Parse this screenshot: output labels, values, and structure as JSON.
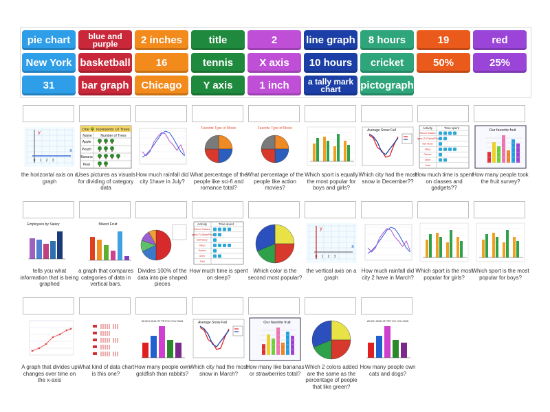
{
  "tiles": [
    {
      "label": "pie chart",
      "color": "#2e9ee8"
    },
    {
      "label": "blue and purple",
      "color": "#c8283a"
    },
    {
      "label": "2 inches",
      "color": "#f28a1c"
    },
    {
      "label": "title",
      "color": "#1f8a3d"
    },
    {
      "label": "2",
      "color": "#c04fd8"
    },
    {
      "label": "line graph",
      "color": "#1b3fa6"
    },
    {
      "label": "8 hours",
      "color": "#2ea57a"
    },
    {
      "label": "19",
      "color": "#ea5a1a"
    },
    {
      "label": "red",
      "color": "#9a45d8"
    },
    {
      "label": "New York",
      "color": "#2e9ee8"
    },
    {
      "label": "basketball",
      "color": "#c8283a"
    },
    {
      "label": "16",
      "color": "#f28a1c"
    },
    {
      "label": "tennis",
      "color": "#1f8a3d"
    },
    {
      "label": "X axis",
      "color": "#c04fd8"
    },
    {
      "label": "10 hours",
      "color": "#1b3fa6"
    },
    {
      "label": "cricket",
      "color": "#2ea57a"
    },
    {
      "label": "50%",
      "color": "#ea5a1a"
    },
    {
      "label": "25%",
      "color": "#9a45d8"
    },
    {
      "label": "31",
      "color": "#2e9ee8"
    },
    {
      "label": "bar graph",
      "color": "#c8283a"
    },
    {
      "label": "Chicago",
      "color": "#f28a1c"
    },
    {
      "label": "Y axis",
      "color": "#1f8a3d"
    },
    {
      "label": "1 inch",
      "color": "#c04fd8"
    },
    {
      "label": "a tally mark chart",
      "color": "#1b3fa6"
    },
    {
      "label": "pictograph",
      "color": "#2ea57a"
    }
  ],
  "cards": [
    {
      "caption": "the horizontal axis on a graph",
      "icon": "axis-x-diagram"
    },
    {
      "caption": "Uses pictures as visuals for dividing of category data",
      "icon": "pictograph-trees-table"
    },
    {
      "caption": "How much rainfall did city 1have in July?",
      "icon": "line-graph-rainfall"
    },
    {
      "caption": "What percentage of the people like sci-fi and romance total?",
      "icon": "pie-chart-movies"
    },
    {
      "caption": "What percentage of the people like action movies?",
      "icon": "pie-chart-movies"
    },
    {
      "caption": "Which sport is equally the most popular for boys and girls?",
      "icon": "bar-graph-sports"
    },
    {
      "caption": "Which city had the most snow in December??",
      "icon": "line-graph-snow"
    },
    {
      "caption": "How much time is spent on classes and gadgets??",
      "icon": "pictograph-time-table"
    },
    {
      "caption": "How many people took the fruit survey?",
      "icon": "bar-graph-fruit"
    },
    {
      "caption": "tells you what information that is being graphed",
      "icon": "bar-graph-employees"
    },
    {
      "caption": "a graph that compares categories of data in vertical bars.",
      "icon": "bar-graph-mixed-fruit"
    },
    {
      "caption": "Divides 100% of the data into pie shaped pieces",
      "icon": "pie-chart"
    },
    {
      "caption": "How much time is spent on sleep?",
      "icon": "pictograph-time-table"
    },
    {
      "caption": "Which color is the second most popular?",
      "icon": "pie-chart-colors"
    },
    {
      "caption": "the vertical axis on a graph",
      "icon": "axis-y-diagram"
    },
    {
      "caption": "How much rainfall did city 2 have in March?",
      "icon": "line-graph-rainfall"
    },
    {
      "caption": "Which sport is the most popular for girls?",
      "icon": "bar-graph-sports"
    },
    {
      "caption": "Which sport is the most popular for boys?",
      "icon": "bar-graph-sports"
    },
    {
      "caption": "A graph that divides up changes over time on the x-axis",
      "icon": "line-graph"
    },
    {
      "caption": "What kind of data chart is this one?",
      "icon": "tally-marks"
    },
    {
      "caption": "How many people own goldfish than rabbits?",
      "icon": "bar-graph-pets"
    },
    {
      "caption": "Which city had the most snow in March?",
      "icon": "line-graph-snow"
    },
    {
      "caption": "How many like bananas or strawberries total?",
      "icon": "bar-graph-fruit"
    },
    {
      "caption": "Which 2 colors added are the same as the percentage of people that like green?",
      "icon": "pie-chart-colors"
    },
    {
      "caption": "How many people own cats and dogs?",
      "icon": "bar-graph-pets"
    }
  ],
  "thumb_text": {
    "pictograph_title": "One 🌳 represents 10 Trees",
    "pictograph_headers": [
      "Name",
      "Number of Trees"
    ],
    "pictograph_rows": [
      "Apple",
      "Peach",
      "Banana",
      "Pear"
    ],
    "time_headers": [
      "Activity",
      "Time spent"
    ],
    "time_rows": [
      "School Classes",
      "Gadgets (TV/Tablet/Phone)",
      "Self Study",
      "Sleep",
      "Games",
      "Other",
      "Total"
    ],
    "fruit_title": "Our favorite fruit",
    "employees_title": "Employees by Salary",
    "mixed_fruit_title": "Mixed Fruit",
    "snow_title": "Average Snow Fall",
    "movie_title": "Favorite Type of Movie",
    "pets_title": "WHICH KIND OF PET DO YOU OWN"
  }
}
